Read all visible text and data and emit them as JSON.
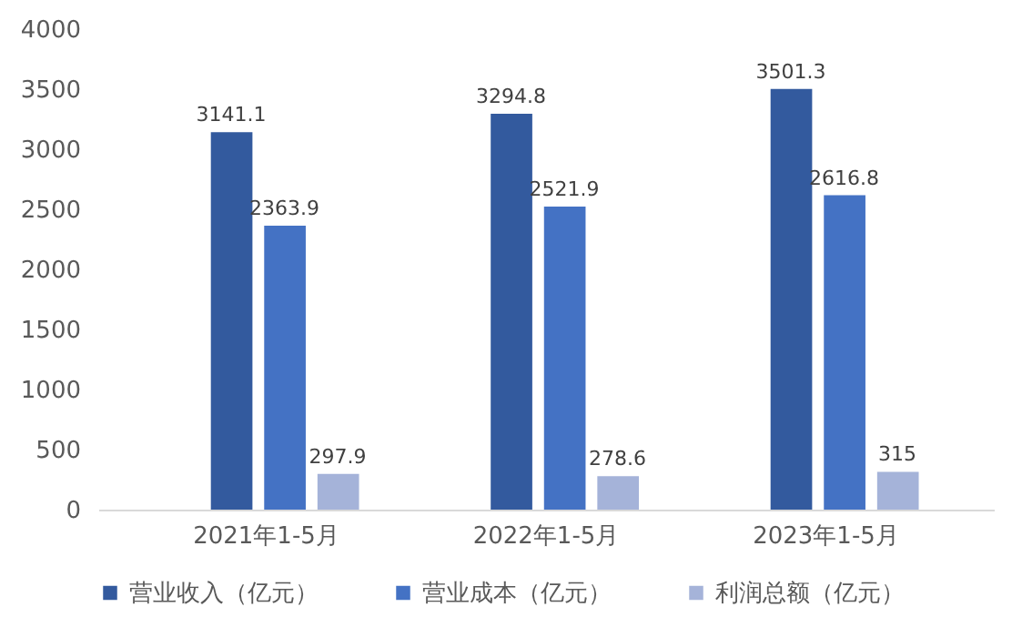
{
  "chart_data": {
    "type": "bar",
    "categories": [
      "2021年1-5月",
      "2022年1-5月",
      "2023年1-5月"
    ],
    "series": [
      {
        "name": "营业收入（亿元）",
        "color": "#335a9e",
        "values": [
          3141.1,
          3294.8,
          3501.3
        ]
      },
      {
        "name": "营业成本（亿元）",
        "color": "#4472c4",
        "values": [
          2363.9,
          2521.9,
          2616.8
        ]
      },
      {
        "name": "利润总额（亿元）",
        "color": "#a5b3d9",
        "values": [
          297.9,
          278.6,
          315
        ]
      }
    ],
    "ylim": [
      0,
      4000
    ],
    "yticks": [
      0,
      500,
      1000,
      1500,
      2000,
      2500,
      3000,
      3500,
      4000
    ],
    "grid": false,
    "legend": "bottom",
    "data_labels": true
  }
}
